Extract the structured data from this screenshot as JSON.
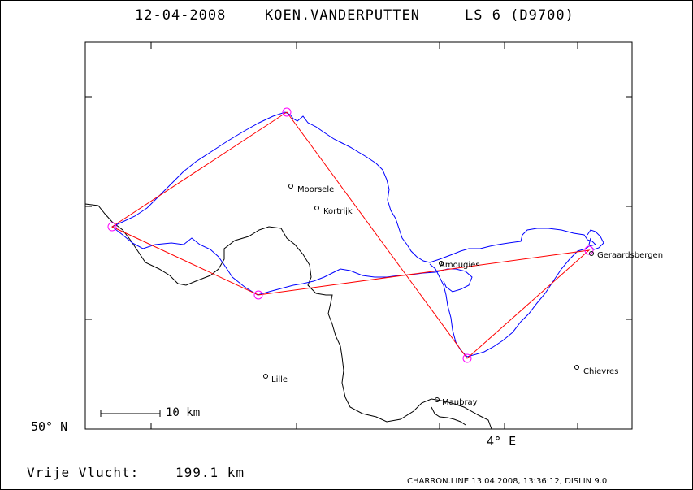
{
  "header": {
    "date": "12-04-2008",
    "pilot": "KOEN.VANDERPUTTEN",
    "glider": "LS 6 (D9700)"
  },
  "axes": {
    "lat_label": "50° N",
    "lon_label": "4° E"
  },
  "scale": {
    "label": "10 km"
  },
  "places": [
    {
      "name": "Moorsele"
    },
    {
      "name": "Kortrijk"
    },
    {
      "name": "Amougies"
    },
    {
      "name": "Geraardsbergen"
    },
    {
      "name": "Chievres"
    },
    {
      "name": "Lille"
    },
    {
      "name": "Maubray"
    }
  ],
  "footer": {
    "flight_label": "Vrije Vlucht:",
    "distance": "199.1 km",
    "program": "CHARRON.LINE 13.04.2008, 13:36:12, DISLIN 9.0"
  },
  "colors": {
    "track": "#0000ff",
    "task": "#ff0000",
    "turnpoint": "#ff00ff",
    "border": "#000000"
  }
}
